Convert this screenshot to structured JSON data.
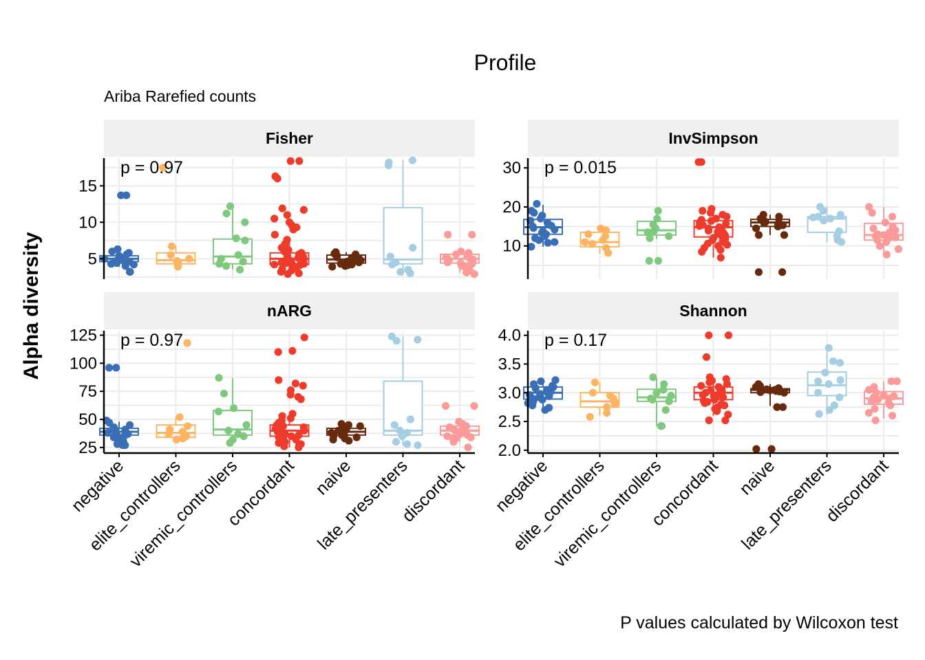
{
  "title": "Profile",
  "subtitle": "Ariba Rarefied counts",
  "caption": "P values calculated by Wilcoxon test",
  "ylabel": "Alpha diversity",
  "chart_data": {
    "type": "box",
    "categories": [
      "negative",
      "elite_controllers",
      "viremic_controllers",
      "concordant",
      "naive",
      "late_presenters",
      "discordant"
    ],
    "colors": [
      "#3A6EB5",
      "#FDB462",
      "#7FC97F",
      "#EE3B2B",
      "#672A0E",
      "#A6CEE3",
      "#FB9A99"
    ],
    "panels": [
      {
        "name": "Fisher",
        "p_label": "p = 0.97",
        "ylim": [
          2.2,
          18.8
        ],
        "yticks": [
          5,
          10,
          15
        ],
        "boxes": [
          {
            "q1": 4.6,
            "median": 5.0,
            "q3": 5.4,
            "wlo": 3.9,
            "whi": 6.3
          },
          {
            "q1": 4.3,
            "median": 4.8,
            "q3": 5.8,
            "wlo": 3.8,
            "whi": 6.8
          },
          {
            "q1": 4.3,
            "median": 5.3,
            "q3": 7.7,
            "wlo": 3.5,
            "whi": 12.2
          },
          {
            "q1": 4.2,
            "median": 5.0,
            "q3": 5.8,
            "wlo": 2.9,
            "whi": 7.6
          },
          {
            "q1": 4.4,
            "median": 4.9,
            "q3": 5.5,
            "wlo": 3.9,
            "whi": 5.9
          },
          {
            "q1": 4.3,
            "median": 4.9,
            "q3": 12.0,
            "wlo": 3.0,
            "whi": 18.5
          },
          {
            "q1": 4.4,
            "median": 5.0,
            "q3": 5.6,
            "wlo": 3.1,
            "whi": 6.0
          }
        ],
        "points": [
          [
            13.7,
            13.7,
            6.3,
            6.0,
            5.8,
            5.6,
            5.4,
            5.2,
            5.1,
            5.0,
            4.9,
            4.8,
            4.7,
            4.6,
            4.5,
            4.4,
            4.3,
            4.2,
            4.0,
            3.2,
            3.2
          ],
          [
            17.5,
            6.7,
            5.5,
            5.0,
            4.7,
            4.5,
            4.3,
            4.2,
            3.9
          ],
          [
            12.2,
            11.2,
            10.0,
            7.8,
            7.5,
            5.5,
            5.0,
            4.6,
            4.3,
            4.0,
            3.5
          ],
          [
            18.4,
            18.4,
            16.3,
            16.0,
            11.9,
            11.7,
            11.0,
            10.5,
            10.0,
            9.6,
            9.3,
            9.0,
            8.3,
            7.6,
            7.0,
            6.5,
            6.2,
            6.0,
            5.8,
            5.6,
            5.5,
            5.3,
            5.2,
            5.1,
            5.0,
            4.9,
            4.8,
            4.7,
            4.6,
            4.5,
            4.4,
            4.3,
            4.2,
            4.1,
            4.0,
            3.8,
            3.6,
            3.4,
            3.2,
            3.0,
            2.9
          ],
          [
            5.9,
            5.7,
            5.6,
            5.4,
            5.2,
            5.1,
            5.0,
            4.9,
            4.8,
            4.7,
            4.6,
            4.5,
            4.4,
            4.3,
            4.2,
            4.1,
            4.0,
            3.9
          ],
          [
            18.5,
            18.2,
            17.8,
            6.5,
            5.3,
            4.5,
            4.2,
            3.5,
            3.2,
            3.0
          ],
          [
            8.3,
            8.3,
            6.0,
            5.8,
            5.6,
            5.4,
            5.2,
            5.0,
            4.9,
            4.8,
            4.6,
            4.5,
            4.4,
            4.3,
            4.0,
            3.8,
            3.4,
            3.1,
            2.9
          ]
        ]
      },
      {
        "name": "InvSimpson",
        "p_label": "p = 0.015",
        "ylim": [
          1.5,
          32.5
        ],
        "yticks": [
          10,
          20,
          30
        ],
        "boxes": [
          {
            "q1": 13.0,
            "median": 14.8,
            "q3": 16.8,
            "wlo": 9.8,
            "whi": 20.5
          },
          {
            "q1": 9.8,
            "median": 11.0,
            "q3": 13.5,
            "wlo": 8.0,
            "whi": 14.5
          },
          {
            "q1": 12.8,
            "median": 14.0,
            "q3": 16.3,
            "wlo": 11.8,
            "whi": 19.0
          },
          {
            "q1": 12.3,
            "median": 14.8,
            "q3": 16.5,
            "wlo": 7.0,
            "whi": 20.0
          },
          {
            "q1": 15.0,
            "median": 16.0,
            "q3": 16.8,
            "wlo": 12.8,
            "whi": 18.0
          },
          {
            "q1": 13.5,
            "median": 17.0,
            "q3": 17.5,
            "wlo": 11.0,
            "whi": 20.0
          },
          {
            "q1": 11.5,
            "median": 12.8,
            "q3": 15.8,
            "wlo": 7.8,
            "whi": 20.0
          }
        ],
        "points": [
          [
            20.8,
            19.0,
            18.5,
            17.8,
            17.0,
            16.5,
            16.0,
            15.5,
            15.2,
            15.0,
            14.6,
            14.2,
            13.8,
            13.4,
            13.0,
            12.5,
            12.0,
            11.5,
            11.0,
            10.8,
            9.8
          ],
          [
            14.5,
            14.0,
            13.0,
            12.5,
            11.5,
            11.0,
            10.5,
            9.5,
            8.2
          ],
          [
            19.0,
            17.0,
            15.5,
            14.5,
            13.8,
            13.5,
            12.5,
            12.0,
            6.2,
            6.2
          ],
          [
            31.5,
            31.5,
            19.5,
            19.0,
            18.5,
            18.0,
            17.5,
            17.0,
            16.7,
            16.4,
            16.0,
            15.7,
            15.4,
            15.1,
            14.8,
            14.5,
            14.2,
            13.9,
            13.6,
            13.3,
            13.0,
            12.7,
            12.4,
            12.1,
            11.8,
            11.5,
            11.2,
            10.9,
            10.6,
            10.3,
            10.0,
            9.5,
            9.0,
            8.5,
            7.0
          ],
          [
            18.0,
            17.5,
            17.0,
            16.5,
            16.2,
            16.0,
            15.8,
            15.6,
            15.3,
            15.0,
            14.5,
            12.8,
            12.8,
            3.3,
            3.3
          ],
          [
            20.0,
            19.0,
            18.0,
            17.5,
            17.3,
            17.0,
            16.5,
            13.8,
            12.5,
            11.5,
            11.0
          ],
          [
            20.0,
            18.5,
            17.5,
            16.0,
            15.0,
            14.5,
            14.0,
            13.5,
            13.0,
            12.8,
            12.5,
            12.2,
            12.0,
            11.5,
            11.0,
            10.0,
            9.2,
            7.8
          ]
        ]
      },
      {
        "name": "nARG",
        "p_label": "p = 0.97",
        "ylim": [
          20,
          129
        ],
        "yticks": [
          25,
          50,
          75,
          100,
          125
        ],
        "boxes": [
          {
            "q1": 36,
            "median": 39,
            "q3": 42,
            "wlo": 28,
            "whi": 48
          },
          {
            "q1": 34,
            "median": 38,
            "q3": 45,
            "wlo": 30,
            "whi": 52
          },
          {
            "q1": 36,
            "median": 41,
            "q3": 58,
            "wlo": 30,
            "whi": 87
          },
          {
            "q1": 35,
            "median": 40,
            "q3": 45,
            "wlo": 25,
            "whi": 55
          },
          {
            "q1": 36,
            "median": 39,
            "q3": 42,
            "wlo": 32,
            "whi": 46
          },
          {
            "q1": 36,
            "median": 40,
            "q3": 84,
            "wlo": 27,
            "whi": 124
          },
          {
            "q1": 36,
            "median": 40,
            "q3": 44,
            "wlo": 30,
            "whi": 48
          }
        ],
        "points": [
          [
            96,
            96,
            49,
            47,
            45,
            43,
            42,
            41,
            40,
            39,
            38,
            37,
            36,
            35,
            34,
            33,
            32,
            30,
            28,
            27,
            27
          ],
          [
            118,
            52,
            44,
            41,
            39,
            37,
            35,
            33,
            32
          ],
          [
            87,
            73,
            60,
            57,
            45,
            40,
            37,
            35,
            32,
            29
          ],
          [
            123,
            111,
            110,
            85,
            82,
            80,
            76,
            72,
            70,
            68,
            55,
            53,
            51,
            49,
            47,
            45,
            44,
            43,
            42,
            41,
            40,
            39,
            38,
            37,
            36,
            35,
            34,
            33,
            32,
            31,
            30,
            29,
            28,
            27,
            26,
            25
          ],
          [
            46,
            45,
            44,
            43,
            42,
            41,
            40,
            39,
            38,
            37,
            36,
            35,
            34,
            33,
            32,
            31
          ],
          [
            124,
            121,
            120,
            50,
            45,
            40,
            38,
            35,
            30,
            28,
            27
          ],
          [
            62,
            62,
            48,
            46,
            44,
            43,
            42,
            41,
            40,
            39,
            38,
            37,
            36,
            35,
            34,
            33,
            32,
            30,
            25
          ]
        ]
      },
      {
        "name": "Shannon",
        "p_label": "p = 0.17",
        "ylim": [
          1.95,
          4.08
        ],
        "yticks": [
          2.0,
          2.5,
          3.0,
          3.5,
          4.0
        ],
        "boxes": [
          {
            "q1": 2.89,
            "median": 3.0,
            "q3": 3.1,
            "wlo": 2.7,
            "whi": 3.22
          },
          {
            "q1": 2.75,
            "median": 2.85,
            "q3": 3.0,
            "wlo": 2.6,
            "whi": 3.18
          },
          {
            "q1": 2.85,
            "median": 2.92,
            "q3": 3.06,
            "wlo": 2.42,
            "whi": 3.25
          },
          {
            "q1": 2.88,
            "median": 3.0,
            "q3": 3.1,
            "wlo": 2.6,
            "whi": 3.25
          },
          {
            "q1": 3.0,
            "median": 3.05,
            "q3": 3.07,
            "wlo": 2.77,
            "whi": 3.15
          },
          {
            "q1": 2.95,
            "median": 3.13,
            "q3": 3.36,
            "wlo": 2.62,
            "whi": 3.78
          },
          {
            "q1": 2.8,
            "median": 2.9,
            "q3": 3.02,
            "wlo": 2.55,
            "whi": 3.2
          }
        ],
        "points": [
          [
            3.22,
            3.2,
            3.15,
            3.12,
            3.1,
            3.08,
            3.05,
            3.02,
            3.0,
            2.98,
            2.96,
            2.94,
            2.92,
            2.9,
            2.88,
            2.85,
            2.82,
            2.78,
            2.74,
            2.7
          ],
          [
            3.18,
            3.0,
            2.95,
            2.9,
            2.85,
            2.8,
            2.75,
            2.65,
            2.58
          ],
          [
            3.27,
            3.15,
            3.05,
            3.0,
            2.95,
            2.9,
            2.88,
            2.85,
            2.7,
            2.42,
            2.42
          ],
          [
            4.0,
            4.0,
            3.62,
            3.27,
            3.24,
            3.21,
            3.18,
            3.15,
            3.12,
            3.1,
            3.08,
            3.06,
            3.04,
            3.02,
            3.0,
            2.98,
            2.96,
            2.94,
            2.92,
            2.9,
            2.88,
            2.86,
            2.84,
            2.82,
            2.8,
            2.78,
            2.75,
            2.72,
            2.68,
            2.62,
            2.52,
            2.52
          ],
          [
            3.15,
            3.12,
            3.1,
            3.08,
            3.06,
            3.05,
            3.04,
            3.03,
            3.02,
            3.01,
            3.0,
            2.75,
            2.75,
            2.02,
            2.02
          ],
          [
            3.78,
            3.55,
            3.52,
            3.35,
            3.22,
            3.2,
            3.15,
            3.0,
            2.92,
            2.78,
            2.7,
            2.63
          ],
          [
            3.2,
            3.2,
            3.1,
            3.05,
            3.0,
            2.97,
            2.94,
            2.92,
            2.9,
            2.88,
            2.85,
            2.82,
            2.78,
            2.72,
            2.65,
            2.6,
            2.52
          ]
        ]
      }
    ]
  }
}
